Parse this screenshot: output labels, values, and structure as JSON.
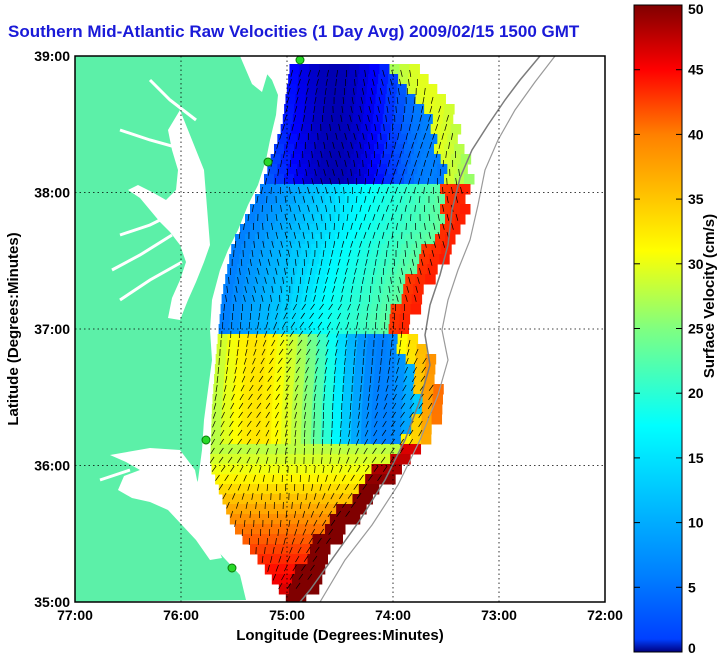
{
  "title": "Southern Mid-Atlantic Raw Velocities (1 Day Avg) 2009/02/15 1500 GMT",
  "map": {
    "x_label": "Longitude (Degrees:Minutes)",
    "y_label": "Latitude (Degrees:Minutes)",
    "x_ticks": [
      "77:00",
      "76:00",
      "75:00",
      "74:00",
      "73:00",
      "72:00"
    ],
    "y_ticks": [
      "39:00",
      "38:00",
      "37:00",
      "36:00",
      "35:00"
    ],
    "x_range": [
      -77,
      -72
    ],
    "y_range": [
      35,
      39
    ],
    "grid": true,
    "land_color": "#5cf0a8",
    "station_color": "#28d828"
  },
  "colorbar": {
    "label": "Surface Velocity (cm/s)",
    "ticks": [
      "50",
      "45",
      "40",
      "35",
      "30",
      "25",
      "20",
      "15",
      "10",
      "5",
      "0"
    ],
    "range": [
      0,
      50
    ],
    "colormap": "jet"
  }
}
